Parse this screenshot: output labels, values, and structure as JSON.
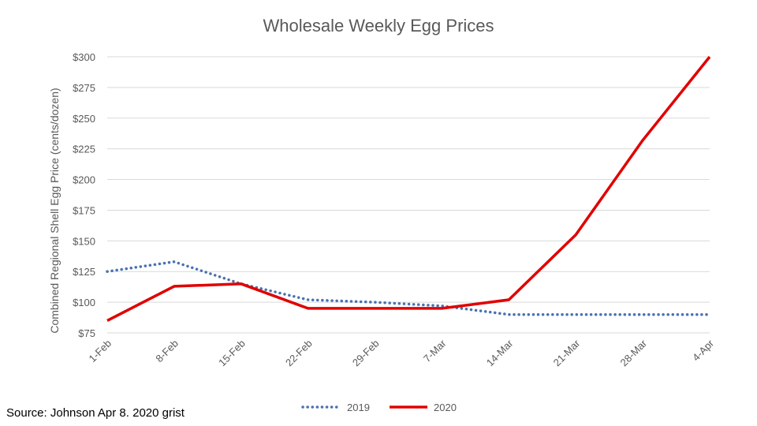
{
  "chart_data": {
    "type": "line",
    "title": "Wholesale Weekly Egg Prices",
    "ylabel": "Combined Regional Shell Egg Price (cents/dozen)",
    "xlabel": "",
    "categories": [
      "1-Feb",
      "8-Feb",
      "15-Feb",
      "22-Feb",
      "29-Feb",
      "7-Mar",
      "14-Mar",
      "21-Mar",
      "28-Mar",
      "4-Apr"
    ],
    "ylim": [
      75,
      300
    ],
    "yticks": [
      75,
      100,
      125,
      150,
      175,
      200,
      225,
      250,
      275,
      300
    ],
    "ytick_labels": [
      "$75",
      "$100",
      "$125",
      "$150",
      "$175",
      "$200",
      "$225",
      "$250",
      "$275",
      "$300"
    ],
    "grid": true,
    "legend_position": "bottom",
    "series": [
      {
        "name": "2019",
        "color": "#4a72b0",
        "style": "dotted",
        "values": [
          125,
          133,
          115,
          102,
          100,
          97,
          90,
          90,
          90,
          90
        ]
      },
      {
        "name": "2020",
        "color": "#e00000",
        "style": "solid",
        "values": [
          85,
          113,
          115,
          95,
          95,
          95,
          102,
          155,
          232,
          300
        ]
      }
    ]
  },
  "source_text": "Source: Johnson Apr 8. 2020 grist"
}
